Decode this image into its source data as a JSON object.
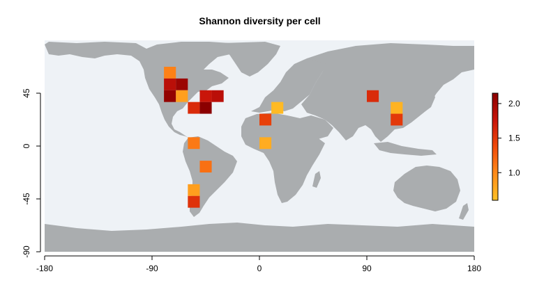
{
  "title": "Shannon diversity per cell",
  "map": {
    "ocean_color": "#EEF2F6",
    "land_color": "#AAADAF",
    "x_ticks": [
      -180,
      -90,
      0,
      90,
      180
    ],
    "y_ticks": [
      -90,
      -45,
      0,
      45
    ],
    "x_range": [
      -180,
      180
    ],
    "y_range": [
      -90,
      90
    ],
    "cell_size_deg": 10,
    "cells": [
      {
        "lon": -75,
        "lat": 62.5,
        "value": 1.05
      },
      {
        "lon": -75,
        "lat": 52.5,
        "value": 1.85
      },
      {
        "lon": -65,
        "lat": 52.5,
        "value": 2.05
      },
      {
        "lon": -75,
        "lat": 42.5,
        "value": 2.1
      },
      {
        "lon": -65,
        "lat": 42.5,
        "value": 0.85
      },
      {
        "lon": -55,
        "lat": 32.5,
        "value": 1.6
      },
      {
        "lon": -45,
        "lat": 42.5,
        "value": 1.75
      },
      {
        "lon": -35,
        "lat": 42.5,
        "value": 1.85
      },
      {
        "lon": -45,
        "lat": 32.5,
        "value": 2.15
      },
      {
        "lon": 15,
        "lat": 32.5,
        "value": 0.65
      },
      {
        "lon": 5,
        "lat": 22.5,
        "value": 1.45
      },
      {
        "lon": 5,
        "lat": 2.5,
        "value": 0.75
      },
      {
        "lon": -55,
        "lat": 2.5,
        "value": 1.1
      },
      {
        "lon": -45,
        "lat": -17.5,
        "value": 1.15
      },
      {
        "lon": -55,
        "lat": -37.5,
        "value": 0.85
      },
      {
        "lon": -55,
        "lat": -47.5,
        "value": 1.55
      },
      {
        "lon": 95,
        "lat": 42.5,
        "value": 1.6
      },
      {
        "lon": 115,
        "lat": 32.5,
        "value": 0.7
      },
      {
        "lon": 115,
        "lat": 22.5,
        "value": 1.5
      }
    ]
  },
  "legend": {
    "ticks": [
      1.0,
      1.5,
      2.0
    ],
    "tick_labels": [
      "1.0",
      "1.5",
      "2.0"
    ],
    "range": [
      0.6,
      2.15
    ],
    "colors": [
      "#FFC125",
      "#FF8C1A",
      "#F04A0A",
      "#C8140A",
      "#8B0000"
    ]
  }
}
